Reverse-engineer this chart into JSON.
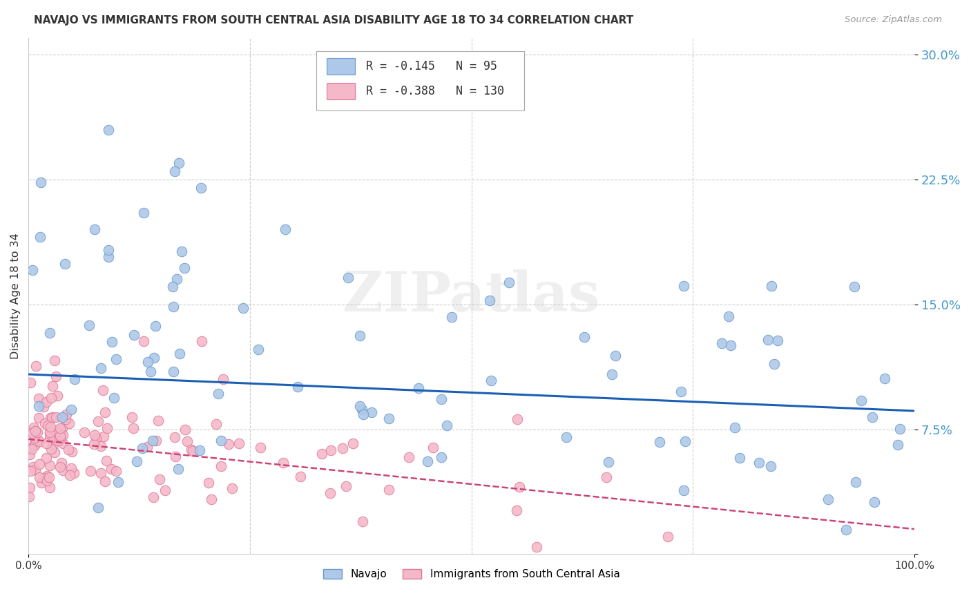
{
  "title": "NAVAJO VS IMMIGRANTS FROM SOUTH CENTRAL ASIA DISABILITY AGE 18 TO 34 CORRELATION CHART",
  "source": "Source: ZipAtlas.com",
  "ylabel": "Disability Age 18 to 34",
  "yticks": [
    0.0,
    0.075,
    0.15,
    0.225,
    0.3
  ],
  "ytick_labels": [
    "",
    "7.5%",
    "15.0%",
    "22.5%",
    "30.0%"
  ],
  "xlim": [
    0.0,
    1.0
  ],
  "ylim": [
    0.0,
    0.31
  ],
  "navajo_color": "#adc8e8",
  "navajo_edge_color": "#6699cc",
  "immigrants_color": "#f5b8c8",
  "immigrants_edge_color": "#dd7799",
  "trend_navajo_color": "#1a5fb4",
  "trend_immigrants_color": "#cc4477",
  "trend_nav_x0": 0.0,
  "trend_nav_x1": 1.0,
  "trend_nav_y0": 0.108,
  "trend_nav_y1": 0.086,
  "trend_imm_x0": 0.0,
  "trend_imm_x1": 1.0,
  "trend_imm_y0": 0.069,
  "trend_imm_y1": 0.015,
  "watermark": "ZIPatlas",
  "legend_r1_val": "-0.145",
  "legend_n1_val": "95",
  "legend_r2_val": "-0.388",
  "legend_n2_val": "130",
  "grid_color": "#cccccc",
  "grid_xticks": [
    0.25,
    0.5,
    0.75
  ],
  "bottom_legend_navajo": "Navajo",
  "bottom_legend_imm": "Immigrants from South Central Asia"
}
